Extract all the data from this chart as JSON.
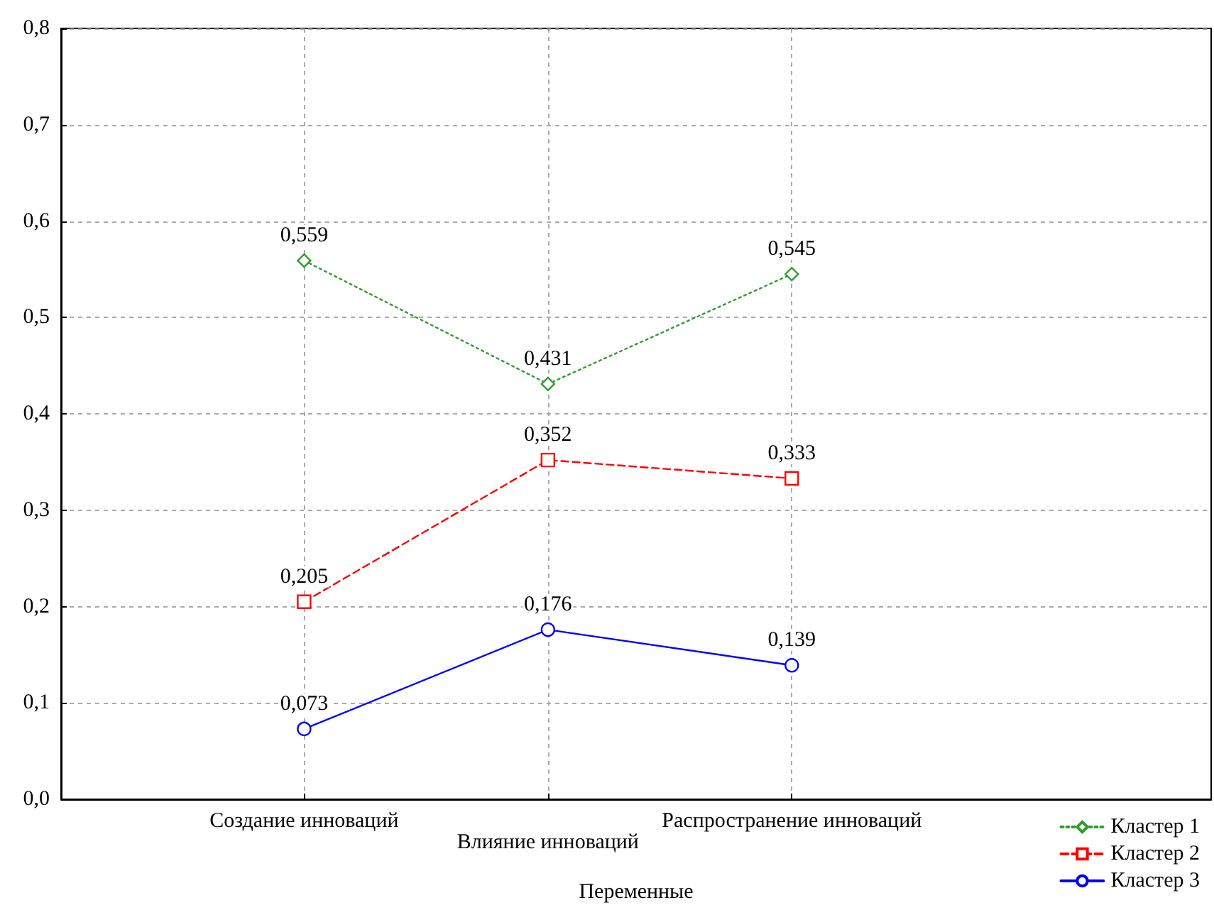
{
  "chart_data": {
    "type": "line",
    "xlabel": "Переменные",
    "categories": [
      "Создание инноваций",
      "Влияние инноваций",
      "Распространение инноваций"
    ],
    "series": [
      {
        "name": "Кластер 1",
        "color": "#2e9e2e",
        "values": [
          0.559,
          0.431,
          0.545
        ],
        "value_labels": [
          "0,559",
          "0,431",
          "0,545"
        ],
        "marker": "diamond",
        "line_style": "dotted"
      },
      {
        "name": "Кластер 2",
        "color": "#ff0000",
        "values": [
          0.205,
          0.352,
          0.333
        ],
        "value_labels": [
          "0,205",
          "0,352",
          "0,333"
        ],
        "marker": "square",
        "line_style": "dashed"
      },
      {
        "name": "Кластер 3",
        "color": "#0000ff",
        "values": [
          0.073,
          0.176,
          0.139
        ],
        "value_labels": [
          "0,073",
          "0,176",
          "0,139"
        ],
        "marker": "circle",
        "line_style": "solid"
      }
    ],
    "ylim": [
      0,
      0.8
    ],
    "yticks": [
      {
        "value": 0,
        "label": "0,0"
      },
      {
        "value": 0.1,
        "label": "0,1"
      },
      {
        "value": 0.2,
        "label": "0,2"
      },
      {
        "value": 0.3,
        "label": "0,3"
      },
      {
        "value": 0.4,
        "label": "0,4"
      },
      {
        "value": 0.5,
        "label": "0,5"
      },
      {
        "value": 0.6,
        "label": "0,6"
      },
      {
        "value": 0.7,
        "label": "0,7"
      },
      {
        "value": 0.8,
        "label": "0,8"
      }
    ],
    "grid": true,
    "legend": "bottom right"
  }
}
